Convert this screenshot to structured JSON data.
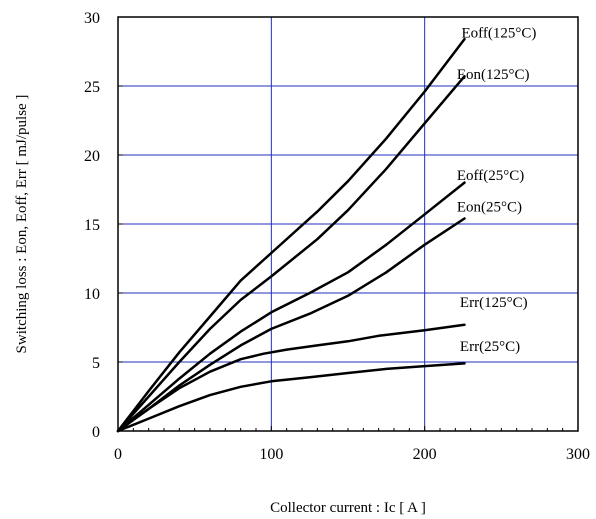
{
  "chart_data": {
    "type": "line",
    "title": "",
    "xlabel": "Collector current : Ic [ A ]",
    "ylabel": "Switching loss : Eon, Eoff, Err [ mJ/pulse ]",
    "xlim": [
      0,
      300
    ],
    "ylim": [
      0,
      30
    ],
    "xticks": [
      0,
      100,
      200,
      300
    ],
    "yticks": [
      0,
      5,
      10,
      15,
      20,
      25,
      30
    ],
    "grid": true,
    "grid_color": "#1f2fbf",
    "line_color": "#000000",
    "series": [
      {
        "name": "Eoff(125°C)",
        "x": [
          0,
          20,
          40,
          60,
          80,
          100,
          130,
          150,
          175,
          200,
          226
        ],
        "y": [
          0,
          2.9,
          5.7,
          8.3,
          10.9,
          12.9,
          15.9,
          18.1,
          21.2,
          24.6,
          28.4
        ]
      },
      {
        "name": "Eon(125°C)",
        "x": [
          0,
          20,
          40,
          60,
          80,
          100,
          130,
          150,
          175,
          200,
          226
        ],
        "y": [
          0,
          2.5,
          5.0,
          7.4,
          9.5,
          11.2,
          13.9,
          16.0,
          19.0,
          22.3,
          25.7
        ]
      },
      {
        "name": "Eoff(25°C)",
        "x": [
          0,
          20,
          40,
          60,
          80,
          100,
          125,
          150,
          175,
          200,
          226
        ],
        "y": [
          0,
          1.9,
          3.8,
          5.6,
          7.2,
          8.6,
          10.0,
          11.5,
          13.5,
          15.7,
          18.0
        ]
      },
      {
        "name": "Eon(25°C)",
        "x": [
          0,
          20,
          40,
          60,
          80,
          100,
          125,
          150,
          175,
          200,
          226
        ],
        "y": [
          0,
          1.6,
          3.3,
          4.8,
          6.2,
          7.4,
          8.5,
          9.8,
          11.5,
          13.5,
          15.4
        ]
      },
      {
        "name": "Err(125°C)",
        "x": [
          0,
          20,
          40,
          60,
          80,
          95,
          110,
          130,
          150,
          170,
          200,
          226
        ],
        "y": [
          0,
          1.6,
          3.1,
          4.3,
          5.2,
          5.6,
          5.9,
          6.2,
          6.5,
          6.9,
          7.3,
          7.7
        ]
      },
      {
        "name": "Err(25°C)",
        "x": [
          0,
          20,
          40,
          60,
          80,
          100,
          125,
          150,
          175,
          200,
          226
        ],
        "y": [
          0,
          0.9,
          1.8,
          2.6,
          3.2,
          3.6,
          3.9,
          4.2,
          4.5,
          4.7,
          4.9
        ]
      }
    ],
    "series_labels": [
      {
        "text": "Eoff(125°C)",
        "x": 224,
        "y": 28.5
      },
      {
        "text": "Eon(125°C)",
        "x": 221,
        "y": 25.5
      },
      {
        "text": "Eoff(25°C)",
        "x": 221,
        "y": 18.2
      },
      {
        "text": "Eon(25°C)",
        "x": 221,
        "y": 15.9
      },
      {
        "text": "Err(125°C)",
        "x": 223,
        "y": 9.0
      },
      {
        "text": "Err(25°C)",
        "x": 223,
        "y": 5.8
      }
    ]
  }
}
